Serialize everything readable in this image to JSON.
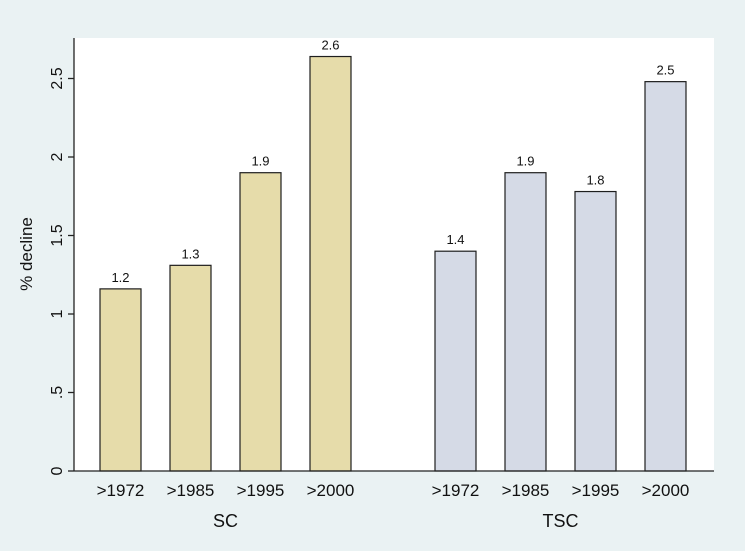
{
  "chart_data": {
    "type": "bar",
    "ylabel": "% decline",
    "ylim": [
      0,
      2.75
    ],
    "yticks": [
      0,
      0.5,
      1,
      1.5,
      2,
      2.5
    ],
    "ytick_labels": [
      "0",
      ".5",
      "1",
      "1.5",
      "2",
      "2.5"
    ],
    "grid": false,
    "groups": [
      {
        "name": "SC",
        "categories": [
          ">1972",
          ">1985",
          ">1995",
          ">2000"
        ],
        "values": [
          1.16,
          1.31,
          1.9,
          2.64
        ],
        "labels": [
          "1.2",
          "1.3",
          "1.9",
          "2.6"
        ]
      },
      {
        "name": "TSC",
        "categories": [
          ">1972",
          ">1985",
          ">1995",
          ">2000"
        ],
        "values": [
          1.4,
          1.9,
          1.78,
          2.48
        ],
        "labels": [
          "1.4",
          "1.9",
          "1.8",
          "2.5"
        ]
      }
    ]
  },
  "colors": {
    "background": "#eaf2f3",
    "plot": "#ffffff",
    "axis": "#222222",
    "bar_stroke": "#1e1e1e",
    "groups": [
      "#e6dcaa",
      "#d5dae6"
    ]
  }
}
